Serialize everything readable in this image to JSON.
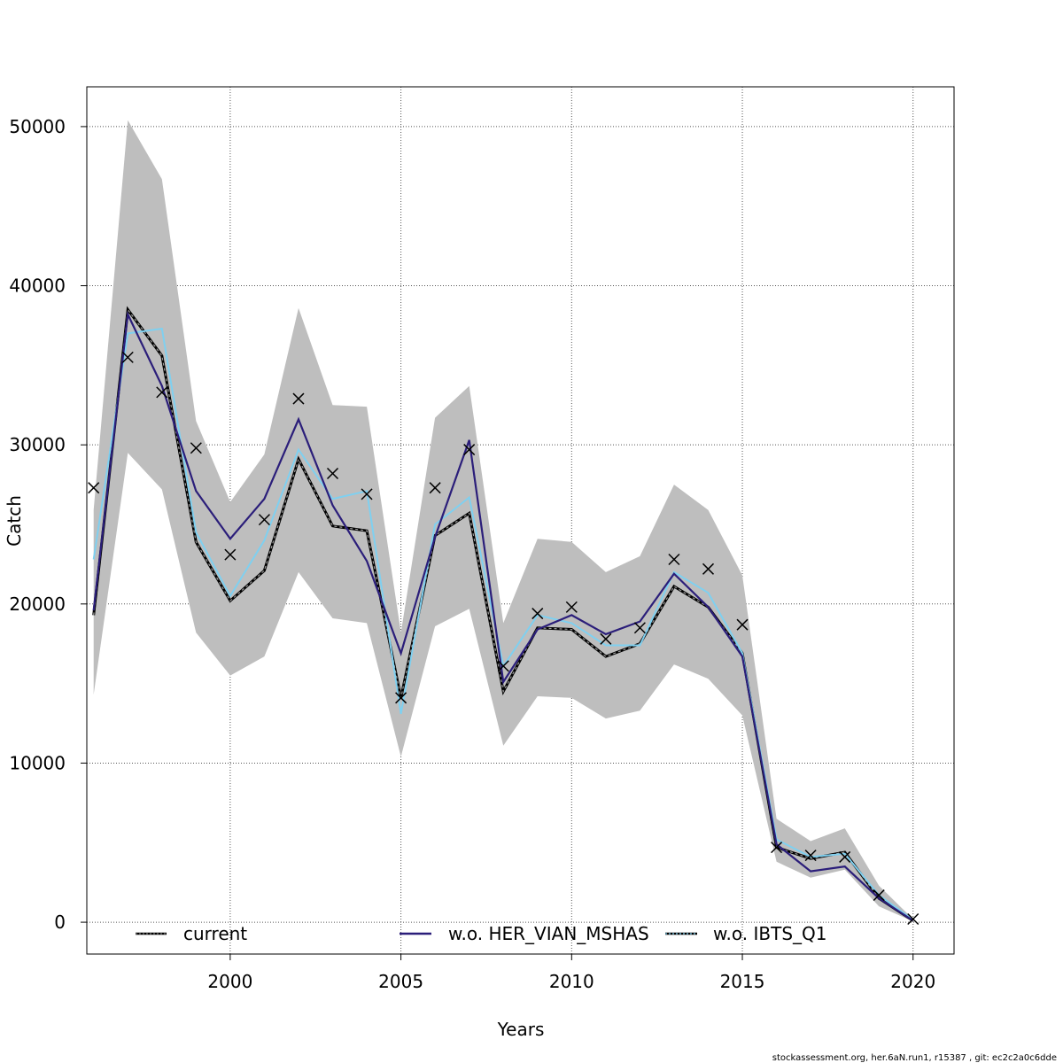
{
  "chart_data": {
    "type": "line",
    "xlabel": "Years",
    "ylabel": "Catch",
    "xlim": [
      1995.8,
      2021.2
    ],
    "ylim": [
      -2000,
      52500
    ],
    "x_ticks": [
      2000,
      2005,
      2010,
      2015,
      2020
    ],
    "y_ticks": [
      0,
      10000,
      20000,
      30000,
      40000,
      50000
    ],
    "grid": true,
    "legend_position": "bottom",
    "x": [
      1996,
      1997,
      1998,
      1999,
      2000,
      2001,
      2002,
      2003,
      2004,
      2005,
      2006,
      2007,
      2008,
      2009,
      2010,
      2011,
      2012,
      2013,
      2014,
      2015,
      2016,
      2017,
      2018,
      2019,
      2020
    ],
    "band": {
      "lower": [
        14300,
        29500,
        27200,
        18200,
        15500,
        16700,
        22000,
        19100,
        18800,
        10400,
        18600,
        19700,
        11100,
        14200,
        14100,
        12800,
        13300,
        16200,
        15300,
        13000,
        3800,
        2800,
        3300,
        1000,
        50
      ],
      "upper": [
        25900,
        50400,
        46700,
        31500,
        26400,
        29400,
        38600,
        32500,
        32400,
        18200,
        31700,
        33700,
        18800,
        24100,
        23900,
        22000,
        23000,
        27500,
        25900,
        21800,
        6500,
        5100,
        5900,
        2300,
        200
      ]
    },
    "observed": [
      27300,
      35500,
      33300,
      29800,
      23100,
      25300,
      32900,
      28200,
      26900,
      14100,
      27300,
      29700,
      16100,
      19400,
      19800,
      17800,
      18500,
      22800,
      22200,
      18700,
      4700,
      4200,
      4100,
      1700,
      200
    ],
    "series": [
      {
        "name": "current",
        "color": "#000000",
        "values": [
          19300,
          38500,
          35600,
          23900,
          20200,
          22100,
          29100,
          24900,
          24600,
          14100,
          24300,
          25700,
          14500,
          18500,
          18400,
          16700,
          17500,
          21100,
          19800,
          16900,
          4700,
          4000,
          4400,
          1500,
          100
        ]
      },
      {
        "name": "w.o. HER_VIAN_MSHAS",
        "color": "#2b1e7a",
        "values": [
          19600,
          38200,
          33700,
          27100,
          24100,
          26600,
          31600,
          26200,
          22700,
          16900,
          24200,
          30300,
          15100,
          18400,
          19300,
          18100,
          18900,
          21900,
          19800,
          16700,
          4900,
          3200,
          3500,
          1500,
          100
        ]
      },
      {
        "name": "w.o. IBTS_Q1",
        "color": "#7fd0f0",
        "values": [
          22800,
          37000,
          37300,
          24500,
          20500,
          24000,
          29700,
          26600,
          27100,
          13100,
          25000,
          26700,
          16100,
          19300,
          18800,
          17400,
          17400,
          22000,
          20700,
          16900,
          5200,
          4100,
          4300,
          1700,
          150
        ]
      }
    ],
    "footer": "stockassessment.org, her.6aN.run1, r15387 , git: ec2c2a0c6dde"
  }
}
